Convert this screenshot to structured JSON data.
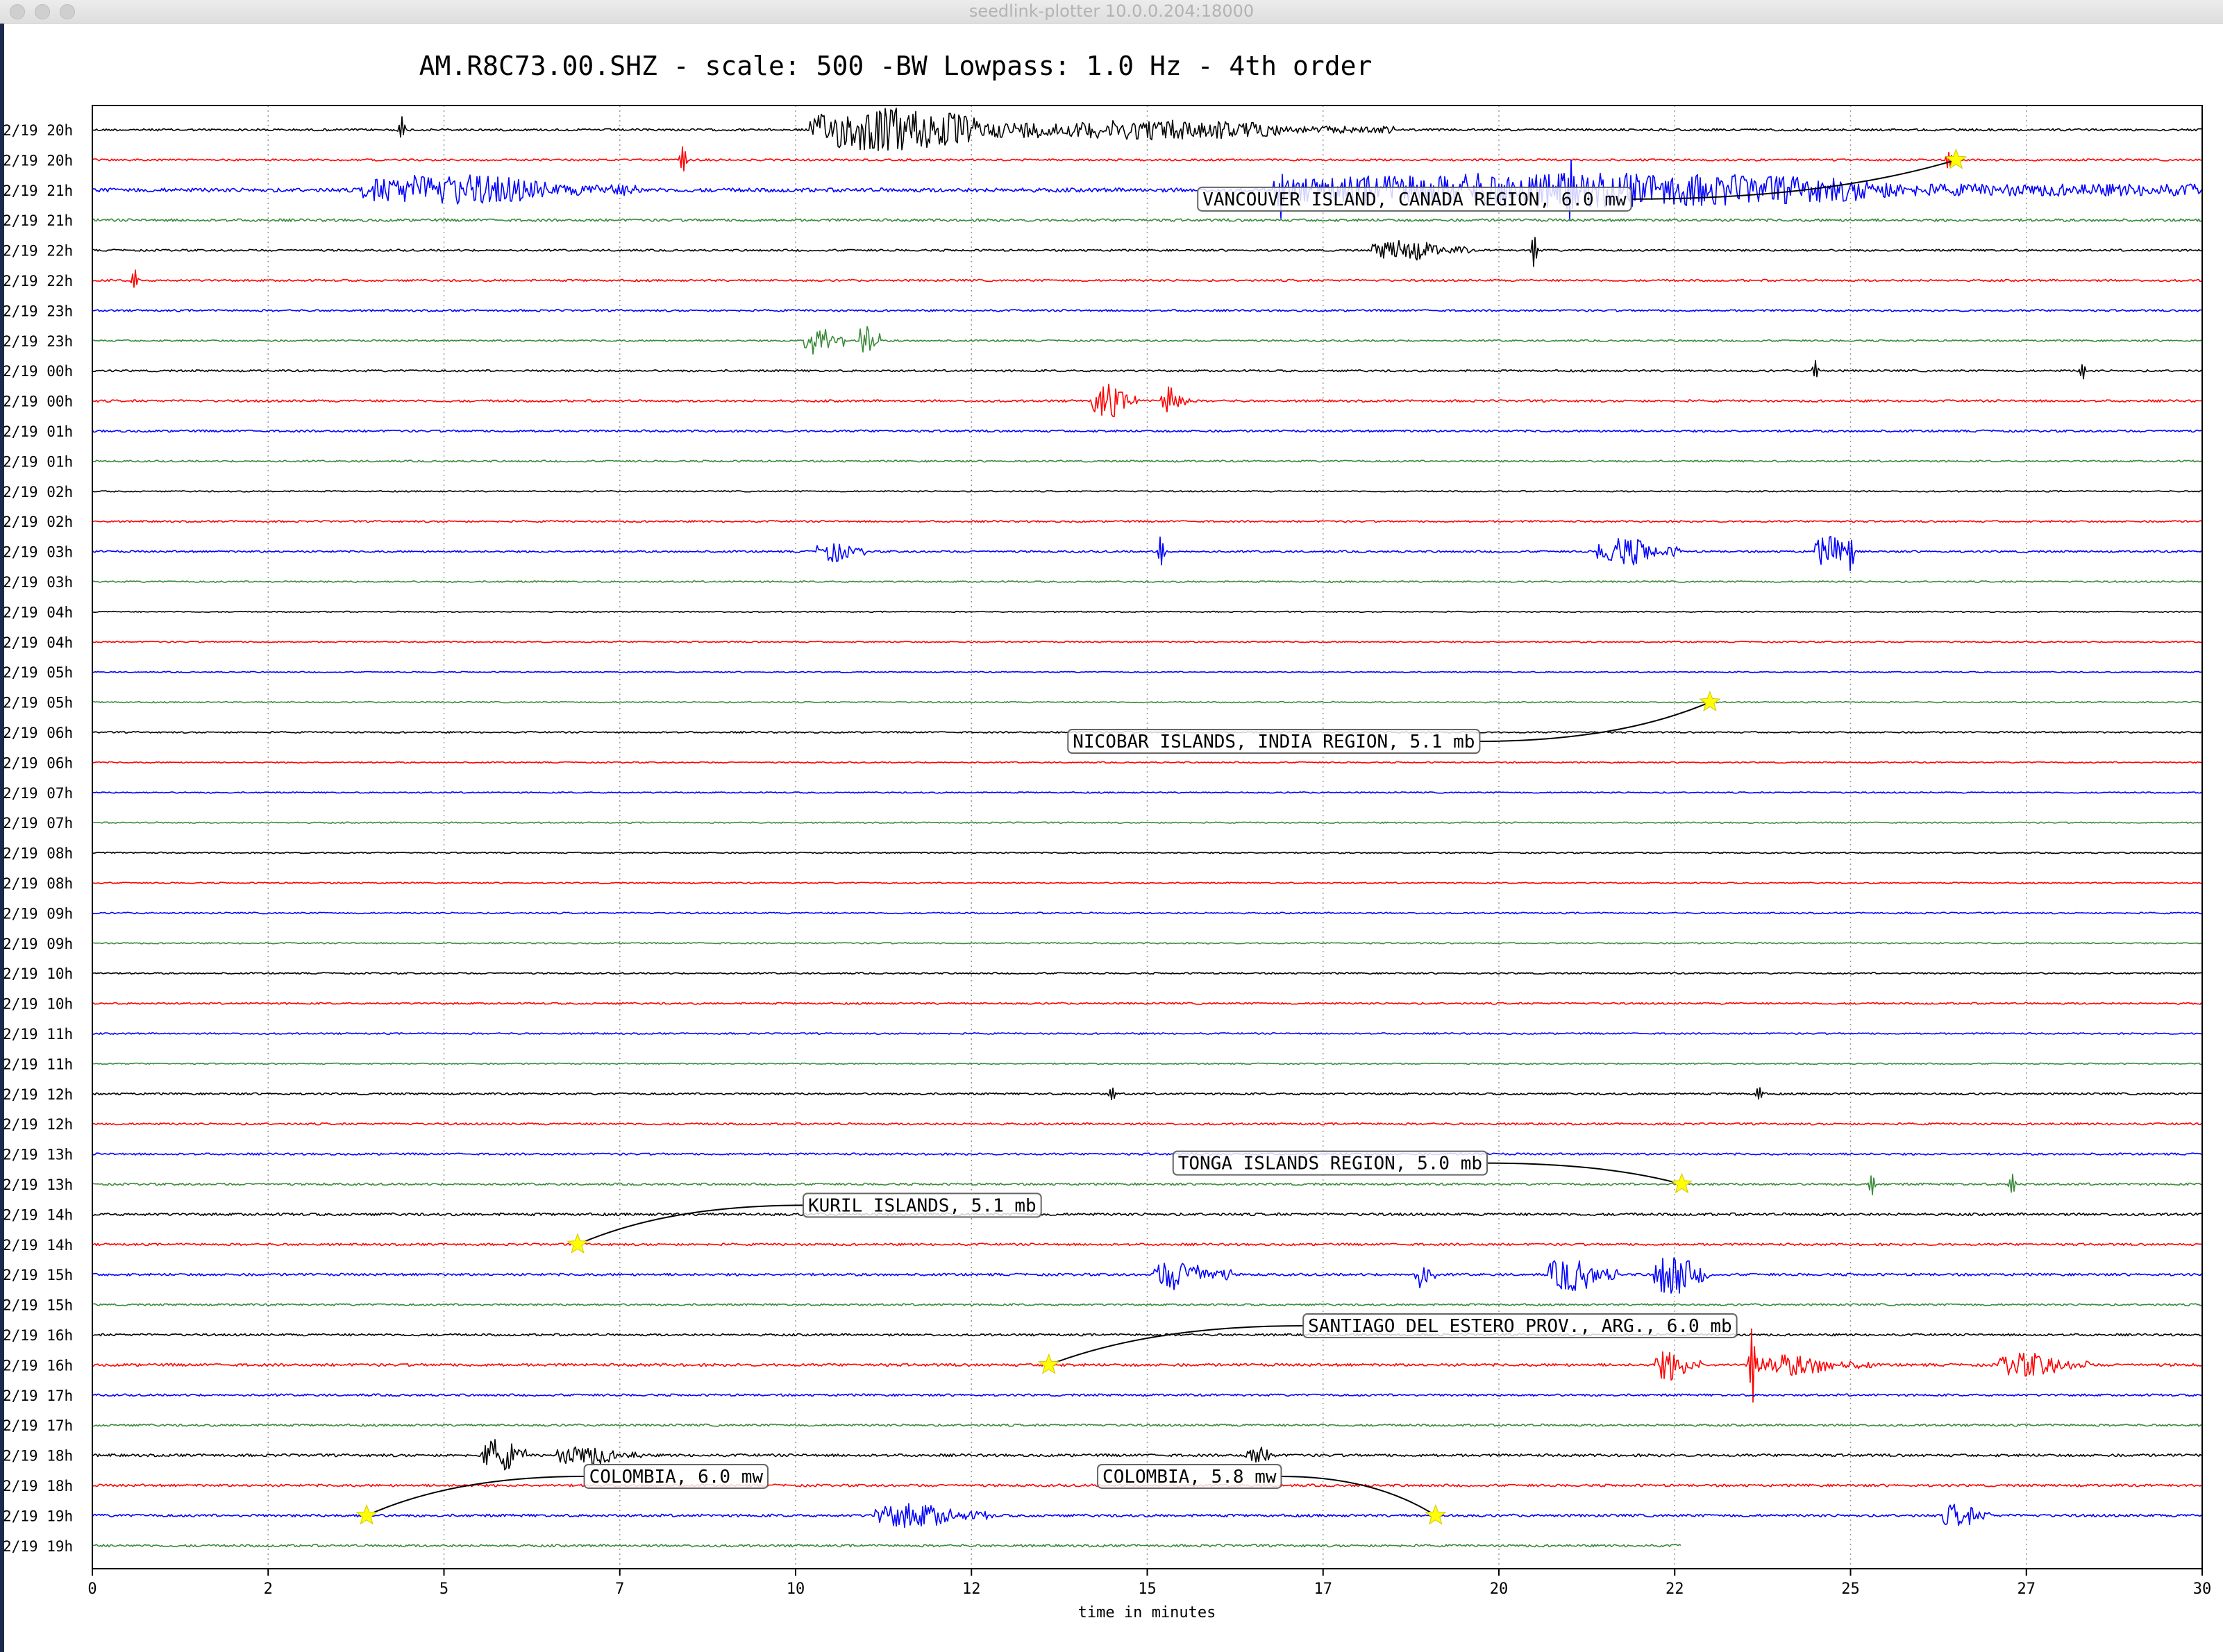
{
  "window": {
    "title": "seedlink-plotter 10.0.0.204:18000"
  },
  "chart_data": {
    "type": "line",
    "title": "AM.R8C73.00.SHZ - scale: 500 -BW Lowpass: 1.0 Hz - 4th order",
    "xlabel": "time in minutes",
    "ylabel": "",
    "xlim": [
      0,
      30
    ],
    "x_ticks": [
      "0",
      "2",
      "5",
      "7",
      "10",
      "12",
      "15",
      "17",
      "20",
      "22",
      "25",
      "27",
      "30"
    ],
    "grid": "vertical dotted",
    "trace_colors": [
      "#000000",
      "#ff0000",
      "#0000ff",
      "#3a8a3a"
    ],
    "row_labels": [
      "2/19 20h",
      "2/19 20h",
      "2/19 21h",
      "2/19 21h",
      "2/19 22h",
      "2/19 22h",
      "2/19 23h",
      "2/19 23h",
      "2/19 00h",
      "2/19 00h",
      "2/19 01h",
      "2/19 01h",
      "2/19 02h",
      "2/19 02h",
      "2/19 03h",
      "2/19 03h",
      "2/19 04h",
      "2/19 04h",
      "2/19 05h",
      "2/19 05h",
      "2/19 06h",
      "2/19 06h",
      "2/19 07h",
      "2/19 07h",
      "2/19 08h",
      "2/19 08h",
      "2/19 09h",
      "2/19 09h",
      "2/19 10h",
      "2/19 10h",
      "2/19 11h",
      "2/19 11h",
      "2/19 12h",
      "2/19 12h",
      "2/19 13h",
      "2/19 13h",
      "2/19 14h",
      "2/19 14h",
      "2/19 15h",
      "2/19 15h",
      "2/19 16h",
      "2/19 16h",
      "2/19 17h",
      "2/19 17h",
      "2/19 18h",
      "2/19 18h",
      "2/19 19h",
      "2/19 19h"
    ],
    "last_row_end_minute": 22.6,
    "noise_level": [
      1.0,
      0.9,
      1.8,
      1.2,
      0.9,
      0.9,
      0.9,
      0.8,
      0.9,
      1.0,
      1.0,
      0.8,
      0.6,
      0.8,
      0.9,
      0.7,
      0.5,
      0.6,
      0.5,
      0.6,
      0.7,
      0.6,
      0.6,
      0.6,
      0.6,
      0.6,
      0.7,
      0.6,
      0.7,
      0.8,
      0.7,
      0.6,
      0.9,
      0.9,
      0.9,
      1.0,
      1.2,
      1.0,
      1.1,
      0.9,
      1.0,
      1.2,
      1.0,
      1.0,
      1.2,
      1.1,
      1.2,
      1.1
    ],
    "wave_trains": [
      {
        "row": 0,
        "start": 10.2,
        "end": 13.8,
        "amp": 6.5
      },
      {
        "row": 0,
        "start": 13.8,
        "end": 18.5,
        "amp": 3.0
      },
      {
        "row": 2,
        "start": 3.8,
        "end": 7.8,
        "amp": 4.5
      },
      {
        "row": 2,
        "start": 16.8,
        "end": 30,
        "amp": 5.0
      },
      {
        "row": 4,
        "start": 18.2,
        "end": 19.6,
        "amp": 3.0
      },
      {
        "row": 7,
        "start": 10.1,
        "end": 10.7,
        "amp": 5.0
      },
      {
        "row": 7,
        "start": 10.9,
        "end": 11.2,
        "amp": 6.0
      },
      {
        "row": 9,
        "start": 14.2,
        "end": 14.9,
        "amp": 5.0
      },
      {
        "row": 9,
        "start": 15.2,
        "end": 15.6,
        "amp": 4.5
      },
      {
        "row": 14,
        "start": 10.3,
        "end": 11.0,
        "amp": 3.0
      },
      {
        "row": 14,
        "start": 21.4,
        "end": 22.6,
        "amp": 4.0
      },
      {
        "row": 14,
        "start": 24.5,
        "end": 25.1,
        "amp": 4.5
      },
      {
        "row": 38,
        "start": 15.1,
        "end": 16.2,
        "amp": 4.5
      },
      {
        "row": 38,
        "start": 18.8,
        "end": 19.1,
        "amp": 4.0
      },
      {
        "row": 38,
        "start": 20.7,
        "end": 21.7,
        "amp": 5.0
      },
      {
        "row": 38,
        "start": 22.2,
        "end": 23.0,
        "amp": 6.5
      },
      {
        "row": 41,
        "start": 22.2,
        "end": 22.9,
        "amp": 4.5
      },
      {
        "row": 41,
        "start": 23.6,
        "end": 25.3,
        "amp": 3.0
      },
      {
        "row": 41,
        "start": 27.1,
        "end": 28.4,
        "amp": 3.5
      },
      {
        "row": 44,
        "start": 5.6,
        "end": 6.2,
        "amp": 5.0
      },
      {
        "row": 44,
        "start": 6.6,
        "end": 7.8,
        "amp": 3.0
      },
      {
        "row": 44,
        "start": 16.4,
        "end": 16.9,
        "amp": 2.5
      },
      {
        "row": 46,
        "start": 11.1,
        "end": 12.8,
        "amp": 3.5
      },
      {
        "row": 46,
        "start": 26.3,
        "end": 27.0,
        "amp": 3.5
      }
    ],
    "spikes": [
      {
        "row": 0,
        "t": 4.4,
        "amp": 4
      },
      {
        "row": 1,
        "t": 8.4,
        "amp": 5
      },
      {
        "row": 1,
        "t": 26.4,
        "amp": 4
      },
      {
        "row": 2,
        "t": 16.9,
        "amp": 10
      },
      {
        "row": 2,
        "t": 21.0,
        "amp": 8
      },
      {
        "row": 4,
        "t": 20.5,
        "amp": 6
      },
      {
        "row": 5,
        "t": 0.6,
        "amp": 4
      },
      {
        "row": 8,
        "t": 24.5,
        "amp": 3
      },
      {
        "row": 8,
        "t": 28.3,
        "amp": 3
      },
      {
        "row": 14,
        "t": 15.2,
        "amp": 6
      },
      {
        "row": 14,
        "t": 25.0,
        "amp": 7
      },
      {
        "row": 32,
        "t": 14.5,
        "amp": 3
      },
      {
        "row": 32,
        "t": 23.7,
        "amp": 3
      },
      {
        "row": 35,
        "t": 25.3,
        "amp": 4
      },
      {
        "row": 35,
        "t": 27.3,
        "amp": 4
      },
      {
        "row": 41,
        "t": 23.6,
        "amp": 14
      },
      {
        "row": 44,
        "t": 5.6,
        "amp": 5
      }
    ],
    "events": [
      {
        "label": "VANCOUVER ISLAND, CANADA REGION, 6.0 mw",
        "row": 1,
        "t": 26.5,
        "label_row": 2.3,
        "label_t": 18.8
      },
      {
        "label": "NICOBAR ISLANDS, INDIA REGION, 5.1 mb",
        "row": 19,
        "t": 23.0,
        "label_row": 20.3,
        "label_t": 16.8
      },
      {
        "label": "TONGA ISLANDS REGION, 5.0 mb",
        "row": 35,
        "t": 22.6,
        "label_row": 34.3,
        "label_t": 17.6
      },
      {
        "label": "KURIL ISLANDS, 5.1 mb",
        "row": 37,
        "t": 6.9,
        "label_row": 35.7,
        "label_t": 11.8
      },
      {
        "label": "SANTIAGO DEL ESTERO PROV., ARG., 6.0 mb",
        "row": 41,
        "t": 13.6,
        "label_row": 39.7,
        "label_t": 20.3
      },
      {
        "label": "COLOMBIA, 6.0 mw",
        "row": 46,
        "t": 3.9,
        "label_row": 44.7,
        "label_t": 8.3
      },
      {
        "label": "COLOMBIA, 5.8 mw",
        "row": 46,
        "t": 19.1,
        "label_row": 44.7,
        "label_t": 15.6
      }
    ]
  }
}
